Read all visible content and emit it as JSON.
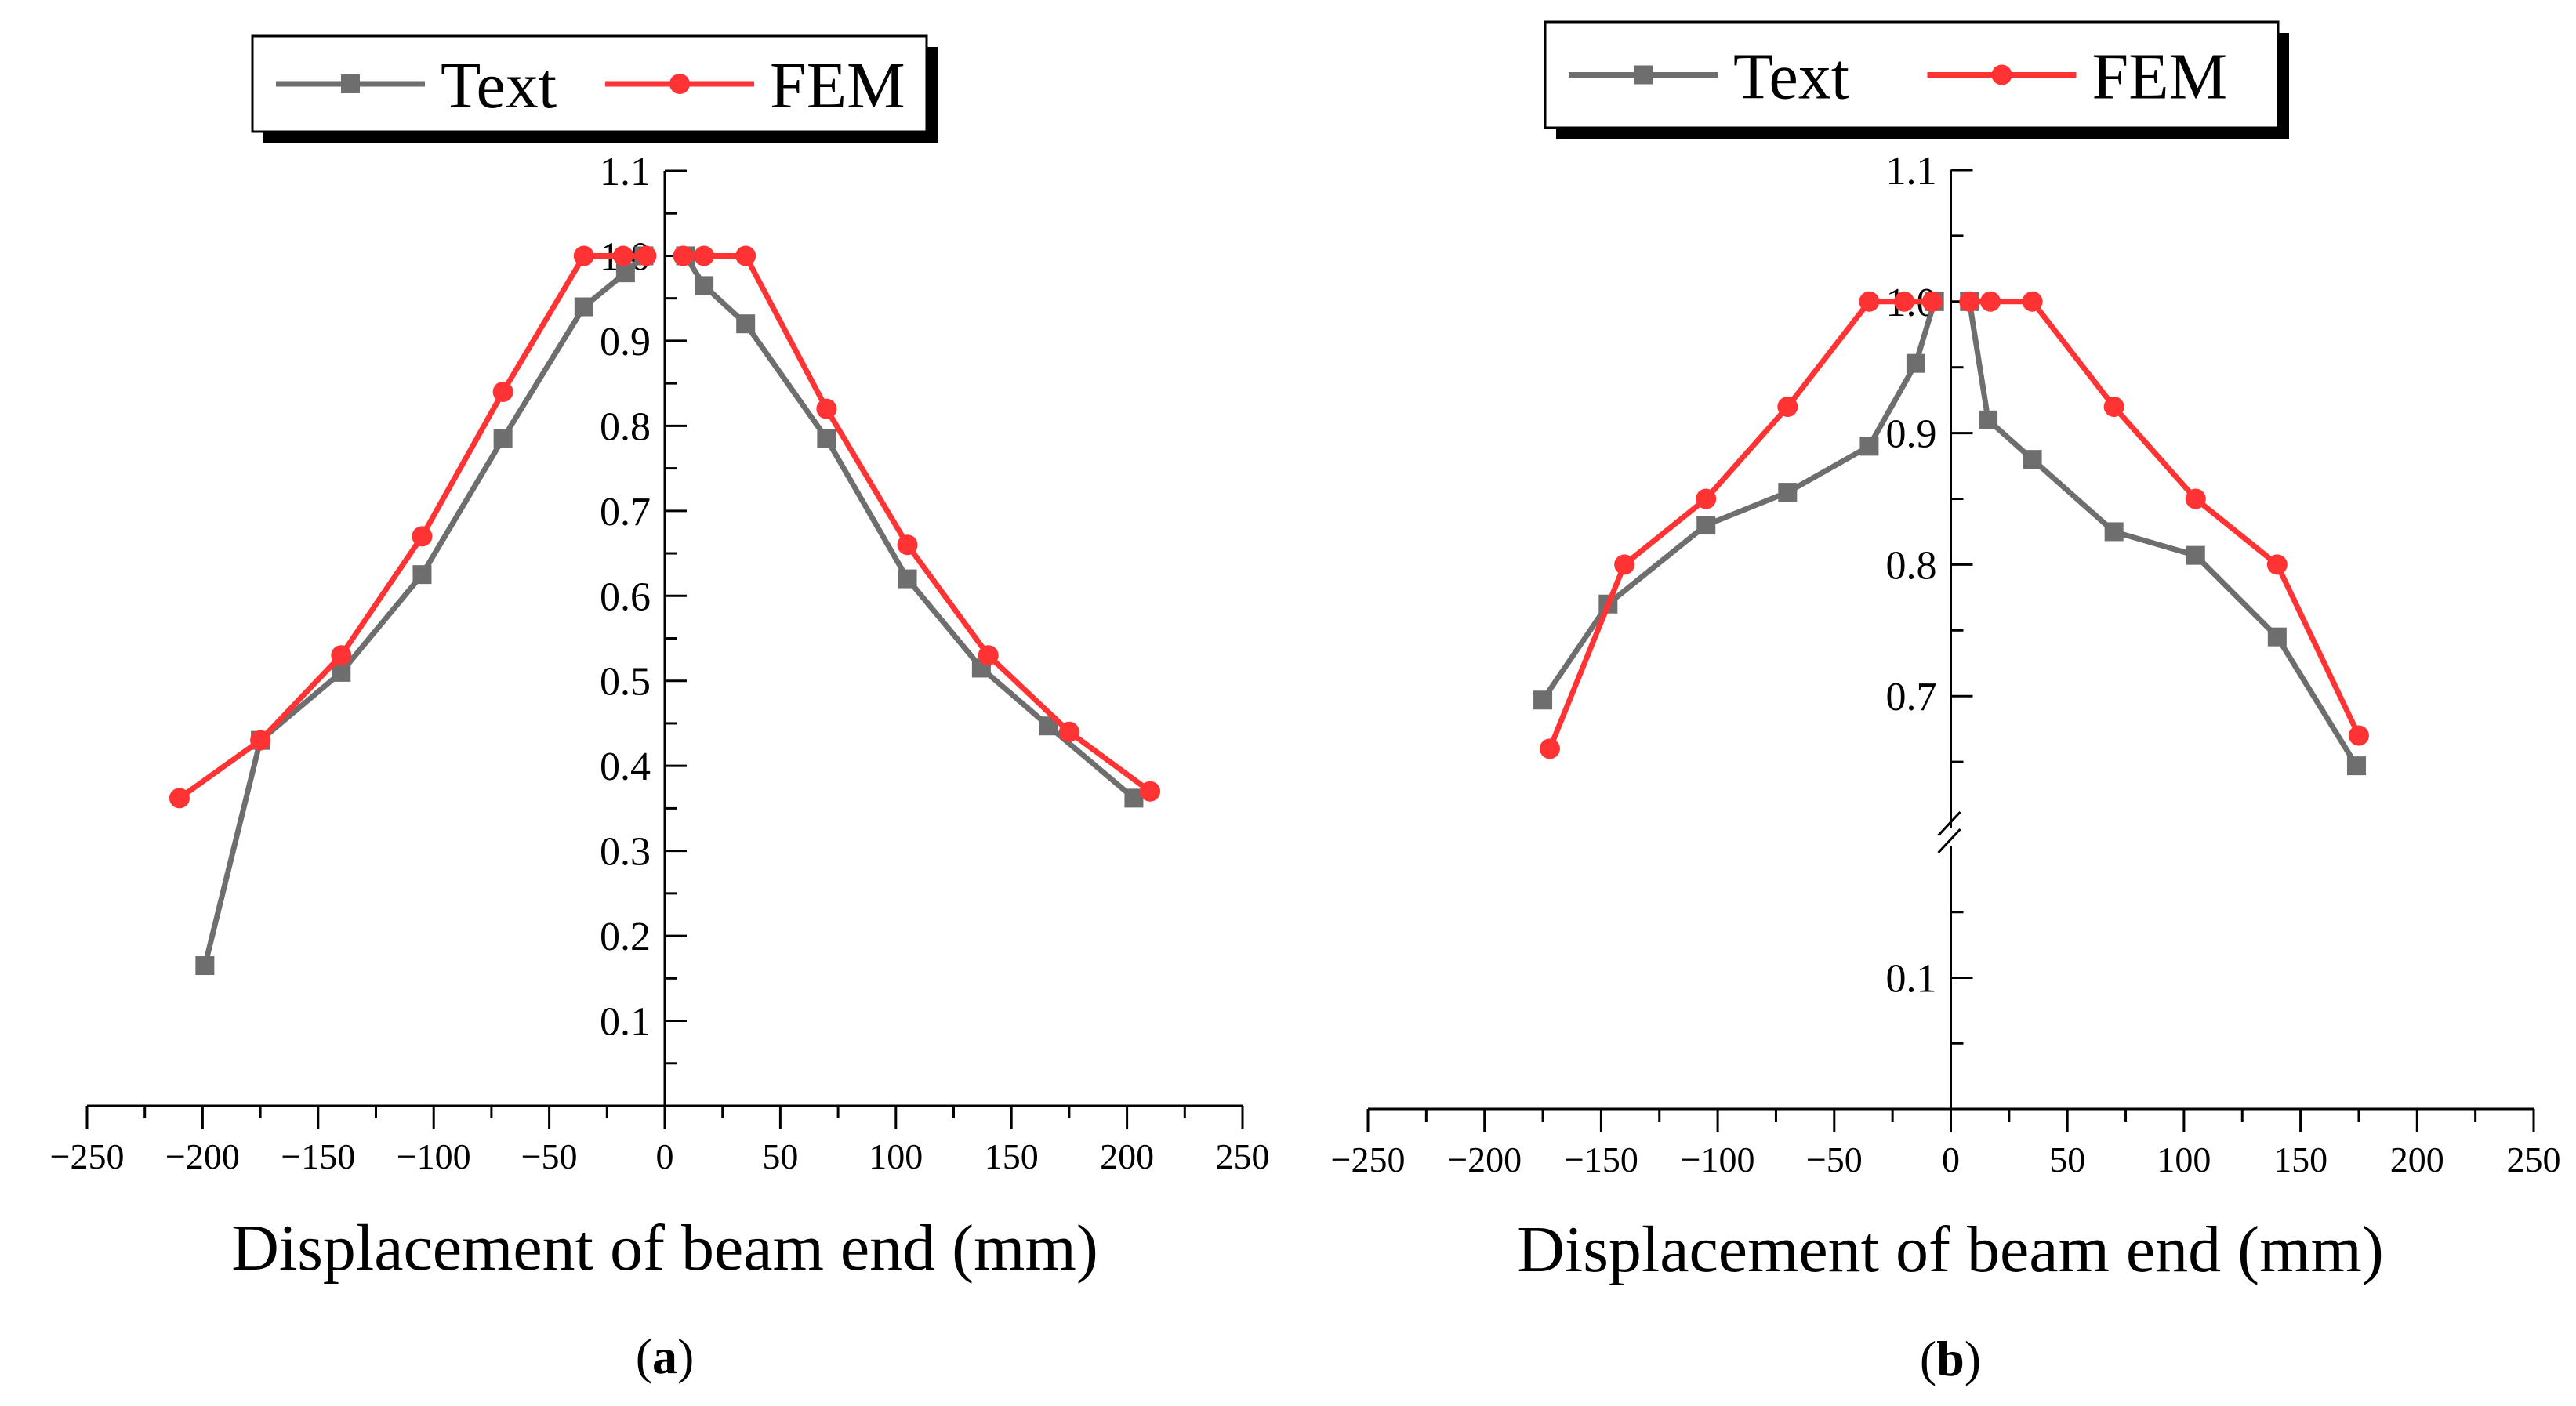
{
  "colors": {
    "test": "#6e6e6e",
    "fem": "#ff3333",
    "axis": "#000000"
  },
  "chart_data": [
    {
      "panel_label": "a",
      "type": "line",
      "xlabel": "Displacement of beam end (mm)",
      "ylabel": "",
      "xlim": [
        -250,
        250
      ],
      "ylim": [
        0,
        1.1
      ],
      "xticks": [
        -250,
        -200,
        -150,
        -100,
        -50,
        0,
        50,
        100,
        150,
        200,
        250
      ],
      "xtick_labels": [
        "−250",
        "−200",
        "−150",
        "−100",
        "−50",
        "0",
        "50",
        "100",
        "150",
        "200",
        "250"
      ],
      "yticks": [
        0.1,
        0.2,
        0.3,
        0.4,
        0.5,
        0.6,
        0.7,
        0.8,
        0.9,
        1.0,
        1.1
      ],
      "ytick_labels": [
        "0.1",
        "0.2",
        "0.3",
        "0.4",
        "0.5",
        "0.6",
        "0.7",
        "0.8",
        "0.9",
        "1.0",
        "1.1"
      ],
      "legend": [
        "Text",
        "FEM"
      ],
      "series": [
        {
          "name": "Text",
          "marker": "square",
          "segments": [
            [
              [
                -199,
                0.165
              ],
              [
                -175,
                0.43
              ],
              [
                -140,
                0.51
              ],
              [
                -105,
                0.625
              ],
              [
                -70,
                0.785
              ],
              [
                -35,
                0.94
              ],
              [
                -17,
                0.98
              ],
              [
                -9,
                1.0
              ]
            ],
            [
              [
                9,
                1.0
              ],
              [
                17,
                0.965
              ],
              [
                35,
                0.92
              ],
              [
                70,
                0.785
              ],
              [
                105,
                0.62
              ],
              [
                137,
                0.515
              ],
              [
                166,
                0.447
              ],
              [
                203,
                0.362
              ]
            ]
          ]
        },
        {
          "name": "FEM",
          "marker": "circle",
          "segments": [
            [
              [
                -210,
                0.362
              ],
              [
                -175,
                0.43
              ],
              [
                -140,
                0.53
              ],
              [
                -105,
                0.67
              ],
              [
                -70,
                0.84
              ],
              [
                -35,
                1.0
              ],
              [
                -18,
                1.0
              ],
              [
                -8,
                1.0
              ]
            ],
            [
              [
                8,
                1.0
              ],
              [
                17,
                1.0
              ],
              [
                35,
                1.0
              ],
              [
                70,
                0.82
              ],
              [
                105,
                0.66
              ],
              [
                140,
                0.53
              ],
              [
                175,
                0.44
              ],
              [
                210,
                0.37
              ]
            ]
          ]
        }
      ]
    },
    {
      "panel_label": "b",
      "type": "line",
      "xlabel": "Displacement of beam end (mm)",
      "ylabel": "",
      "xlim": [
        -250,
        250
      ],
      "ylim": [
        0,
        1.1
      ],
      "axis_break": {
        "lower": [
          0,
          0.2
        ],
        "upper": [
          0.6,
          1.1
        ]
      },
      "xticks": [
        -250,
        -200,
        -150,
        -100,
        -50,
        0,
        50,
        100,
        150,
        200,
        250
      ],
      "xtick_labels": [
        "−250",
        "−200",
        "−150",
        "−100",
        "−50",
        "0",
        "50",
        "100",
        "150",
        "200",
        "250"
      ],
      "yticks": [
        0.1,
        0.7,
        0.8,
        0.9,
        1.0,
        1.1
      ],
      "ytick_labels": [
        "0.1",
        "0.7",
        "0.8",
        "0.9",
        "1.0",
        "1.1"
      ],
      "legend": [
        "Text",
        "FEM"
      ],
      "series": [
        {
          "name": "Text",
          "marker": "square",
          "segments": [
            [
              [
                -175,
                0.697
              ],
              [
                -147,
                0.77
              ],
              [
                -105,
                0.83
              ],
              [
                -70,
                0.855
              ],
              [
                -35,
                0.89
              ],
              [
                -15,
                0.953
              ],
              [
                -7,
                1.0
              ]
            ],
            [
              [
                8,
                1.0
              ],
              [
                16,
                0.91
              ],
              [
                35,
                0.88
              ],
              [
                70,
                0.825
              ],
              [
                105,
                0.807
              ],
              [
                140,
                0.745
              ],
              [
                174,
                0.647
              ]
            ]
          ]
        },
        {
          "name": "FEM",
          "marker": "circle",
          "segments": [
            [
              [
                -172,
                0.66
              ],
              [
                -140,
                0.8
              ],
              [
                -105,
                0.85
              ],
              [
                -70,
                0.92
              ],
              [
                -35,
                1.0
              ],
              [
                -20,
                1.0
              ],
              [
                -8,
                1.0
              ]
            ],
            [
              [
                8,
                1.0
              ],
              [
                17,
                1.0
              ],
              [
                35,
                1.0
              ],
              [
                70,
                0.92
              ],
              [
                105,
                0.85
              ],
              [
                140,
                0.8
              ],
              [
                175,
                0.67
              ]
            ]
          ]
        }
      ]
    }
  ]
}
